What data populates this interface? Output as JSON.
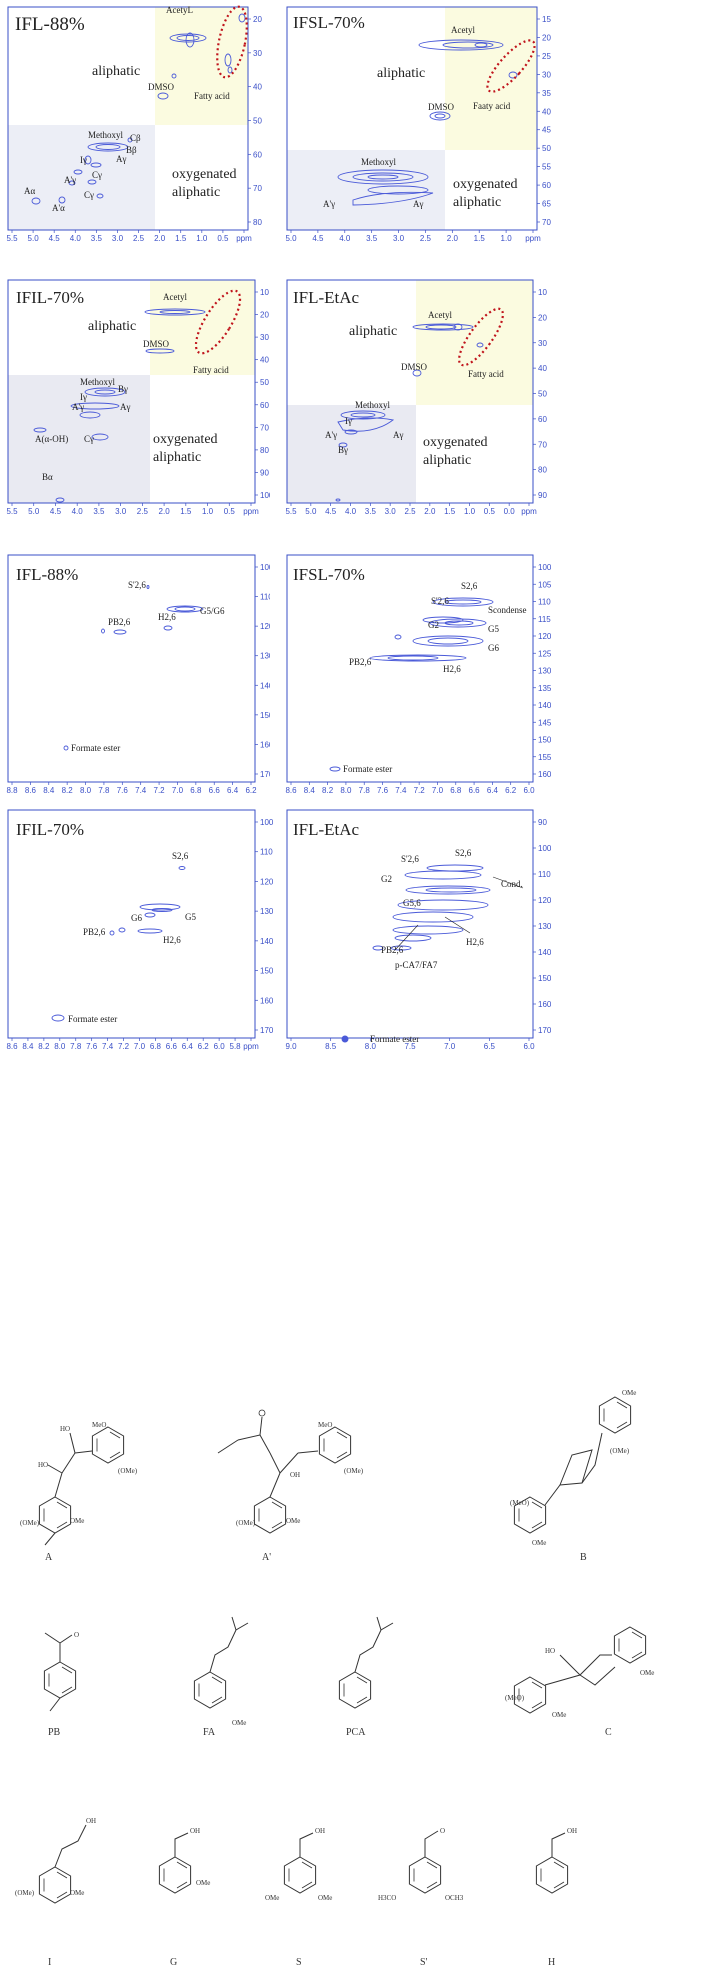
{
  "colors": {
    "axis": "#3a4fc7",
    "contour": "#4a5ad8",
    "yellow_region": "#fbfbe0",
    "gray_region": "#e9eaf2",
    "ellipse": "#c0141c",
    "label": "#222222"
  },
  "panels": [
    {
      "id": "p1",
      "title": "IFL-88%",
      "xticks": [
        "5.5",
        "5.0",
        "4.5",
        "4.0",
        "3.5",
        "3.0",
        "2.5",
        "2.0",
        "1.5",
        "1.0",
        "0.5",
        "ppm"
      ],
      "yticks": [
        "20",
        "30",
        "40",
        "50",
        "60",
        "70",
        "80"
      ],
      "regions": [
        "aliphatic",
        "oxygenated",
        "aliphatic"
      ],
      "labels": [
        "AcetyL",
        "DMSO",
        "Fatty acid",
        "Methoxyl",
        "Cβ",
        "Bβ",
        "Iγ",
        "Aγ",
        "Cγ",
        "A'γ",
        "Cγ",
        "Aα",
        "A'α"
      ]
    },
    {
      "id": "p2",
      "title": "IFSL-70%",
      "xticks": [
        "5.0",
        "4.5",
        "4.0",
        "3.5",
        "3.0",
        "2.5",
        "2.0",
        "1.5",
        "1.0",
        "ppm"
      ],
      "yticks": [
        "15",
        "20",
        "25",
        "30",
        "35",
        "40",
        "45",
        "50",
        "55",
        "60",
        "65",
        "70"
      ],
      "regions": [
        "aliphatic",
        "oxygenated",
        "aliphatic"
      ],
      "labels": [
        "Acetyl",
        "DMSO",
        "Faaty acid",
        "Methoxyl",
        "A'γ",
        "Aγ"
      ]
    },
    {
      "id": "p3",
      "title": "IFIL-70%",
      "xticks": [
        "5.5",
        "5.0",
        "4.5",
        "4.0",
        "3.5",
        "3.0",
        "2.5",
        "2.0",
        "1.5",
        "1.0",
        "0.5",
        "ppm"
      ],
      "yticks": [
        "10",
        "20",
        "30",
        "40",
        "50",
        "60",
        "70",
        "80",
        "90",
        "100"
      ],
      "regions": [
        "aliphatic",
        "oxygenated",
        "aliphatic"
      ],
      "labels": [
        "Acetyl",
        "DMSO",
        "Fatty acid",
        "Methoxyl",
        "Bγ",
        "Iγ",
        "A'γ",
        "Aγ",
        "A(α-OH)",
        "Cγ",
        "Bα"
      ]
    },
    {
      "id": "p4",
      "title": "IFL-EtAc",
      "xticks": [
        "5.5",
        "5.0",
        "4.5",
        "4.0",
        "3.5",
        "3.0",
        "2.5",
        "2.0",
        "1.5",
        "1.0",
        "0.5",
        "0.0",
        "ppm"
      ],
      "yticks": [
        "10",
        "20",
        "30",
        "40",
        "50",
        "60",
        "70",
        "80",
        "90"
      ],
      "regions": [
        "aliphatic",
        "oxygenated",
        "aliphatic"
      ],
      "labels": [
        "Acetyl",
        "DMSO",
        "Fatty acid",
        "Methoxyl",
        "Iγ",
        "A'γ",
        "Bγ",
        "Aγ"
      ]
    },
    {
      "id": "p5",
      "title": "IFL-88%",
      "xticks": [
        "8.8",
        "8.6",
        "8.4",
        "8.2",
        "8.0",
        "7.8",
        "7.6",
        "7.4",
        "7.2",
        "7.0",
        "6.8",
        "6.6",
        "6.4",
        "6.2"
      ],
      "yticks": [
        "100",
        "110",
        "120",
        "130",
        "140",
        "150",
        "160",
        "170"
      ],
      "labels": [
        "S'2,6",
        "G5/G6",
        "PB2,6",
        "H2,6",
        "Formate ester"
      ]
    },
    {
      "id": "p6",
      "title": "IFSL-70%",
      "xticks": [
        "8.6",
        "8.4",
        "8.2",
        "8.0",
        "7.8",
        "7.6",
        "7.4",
        "7.2",
        "7.0",
        "6.8",
        "6.6",
        "6.4",
        "6.2",
        "6.0"
      ],
      "yticks": [
        "100",
        "105",
        "110",
        "115",
        "120",
        "125",
        "130",
        "135",
        "140",
        "145",
        "150",
        "155",
        "160"
      ],
      "labels": [
        "S2,6",
        "S'2,6",
        "Scondense",
        "G2",
        "G5",
        "G6",
        "PB2,6",
        "H2,6",
        "Formate ester"
      ]
    },
    {
      "id": "p7",
      "title": "IFIL-70%",
      "xticks": [
        "8.6",
        "8.4",
        "8.2",
        "8.0",
        "7.8",
        "7.6",
        "7.4",
        "7.2",
        "7.0",
        "6.8",
        "6.6",
        "6.4",
        "6.2",
        "6.0",
        "5.8",
        "ppm"
      ],
      "yticks": [
        "100",
        "110",
        "120",
        "130",
        "140",
        "150",
        "160",
        "170"
      ],
      "labels": [
        "S2,6",
        "G6",
        "G5",
        "PB2,6",
        "H2,6",
        "Formate ester"
      ]
    },
    {
      "id": "p8",
      "title": "IFL-EtAc",
      "xticks": [
        "9.0",
        "8.5",
        "8.0",
        "7.5",
        "7.0",
        "6.5",
        "6.0"
      ],
      "yticks": [
        "90",
        "100",
        "110",
        "120",
        "130",
        "140",
        "150",
        "160",
        "170"
      ],
      "labels": [
        "S2,6",
        "S'2,6",
        "G2",
        "Cond.",
        "G5,6",
        "PB2,6",
        "H2,6",
        "p-CA7/FA7",
        "Formate ester"
      ]
    }
  ],
  "structures": [
    {
      "id": "A",
      "label": "A"
    },
    {
      "id": "A2",
      "label": "A'"
    },
    {
      "id": "B",
      "label": "B"
    },
    {
      "id": "PB",
      "label": "PB"
    },
    {
      "id": "FA",
      "label": "FA"
    },
    {
      "id": "PCA",
      "label": "PCA"
    },
    {
      "id": "C",
      "label": "C"
    },
    {
      "id": "I",
      "label": "I"
    },
    {
      "id": "G",
      "label": "G"
    },
    {
      "id": "S",
      "label": "S"
    },
    {
      "id": "S2",
      "label": "S'"
    },
    {
      "id": "H",
      "label": "H"
    }
  ],
  "structure_texts": {
    "ho": "HO",
    "oh": "OH",
    "ome": "OMe",
    "ome_paren": "(OMe)",
    "meo": "MeO",
    "meo_paren": "(MeO)",
    "h3co": "H3CO",
    "och3": "OCH3",
    "o": "O"
  }
}
